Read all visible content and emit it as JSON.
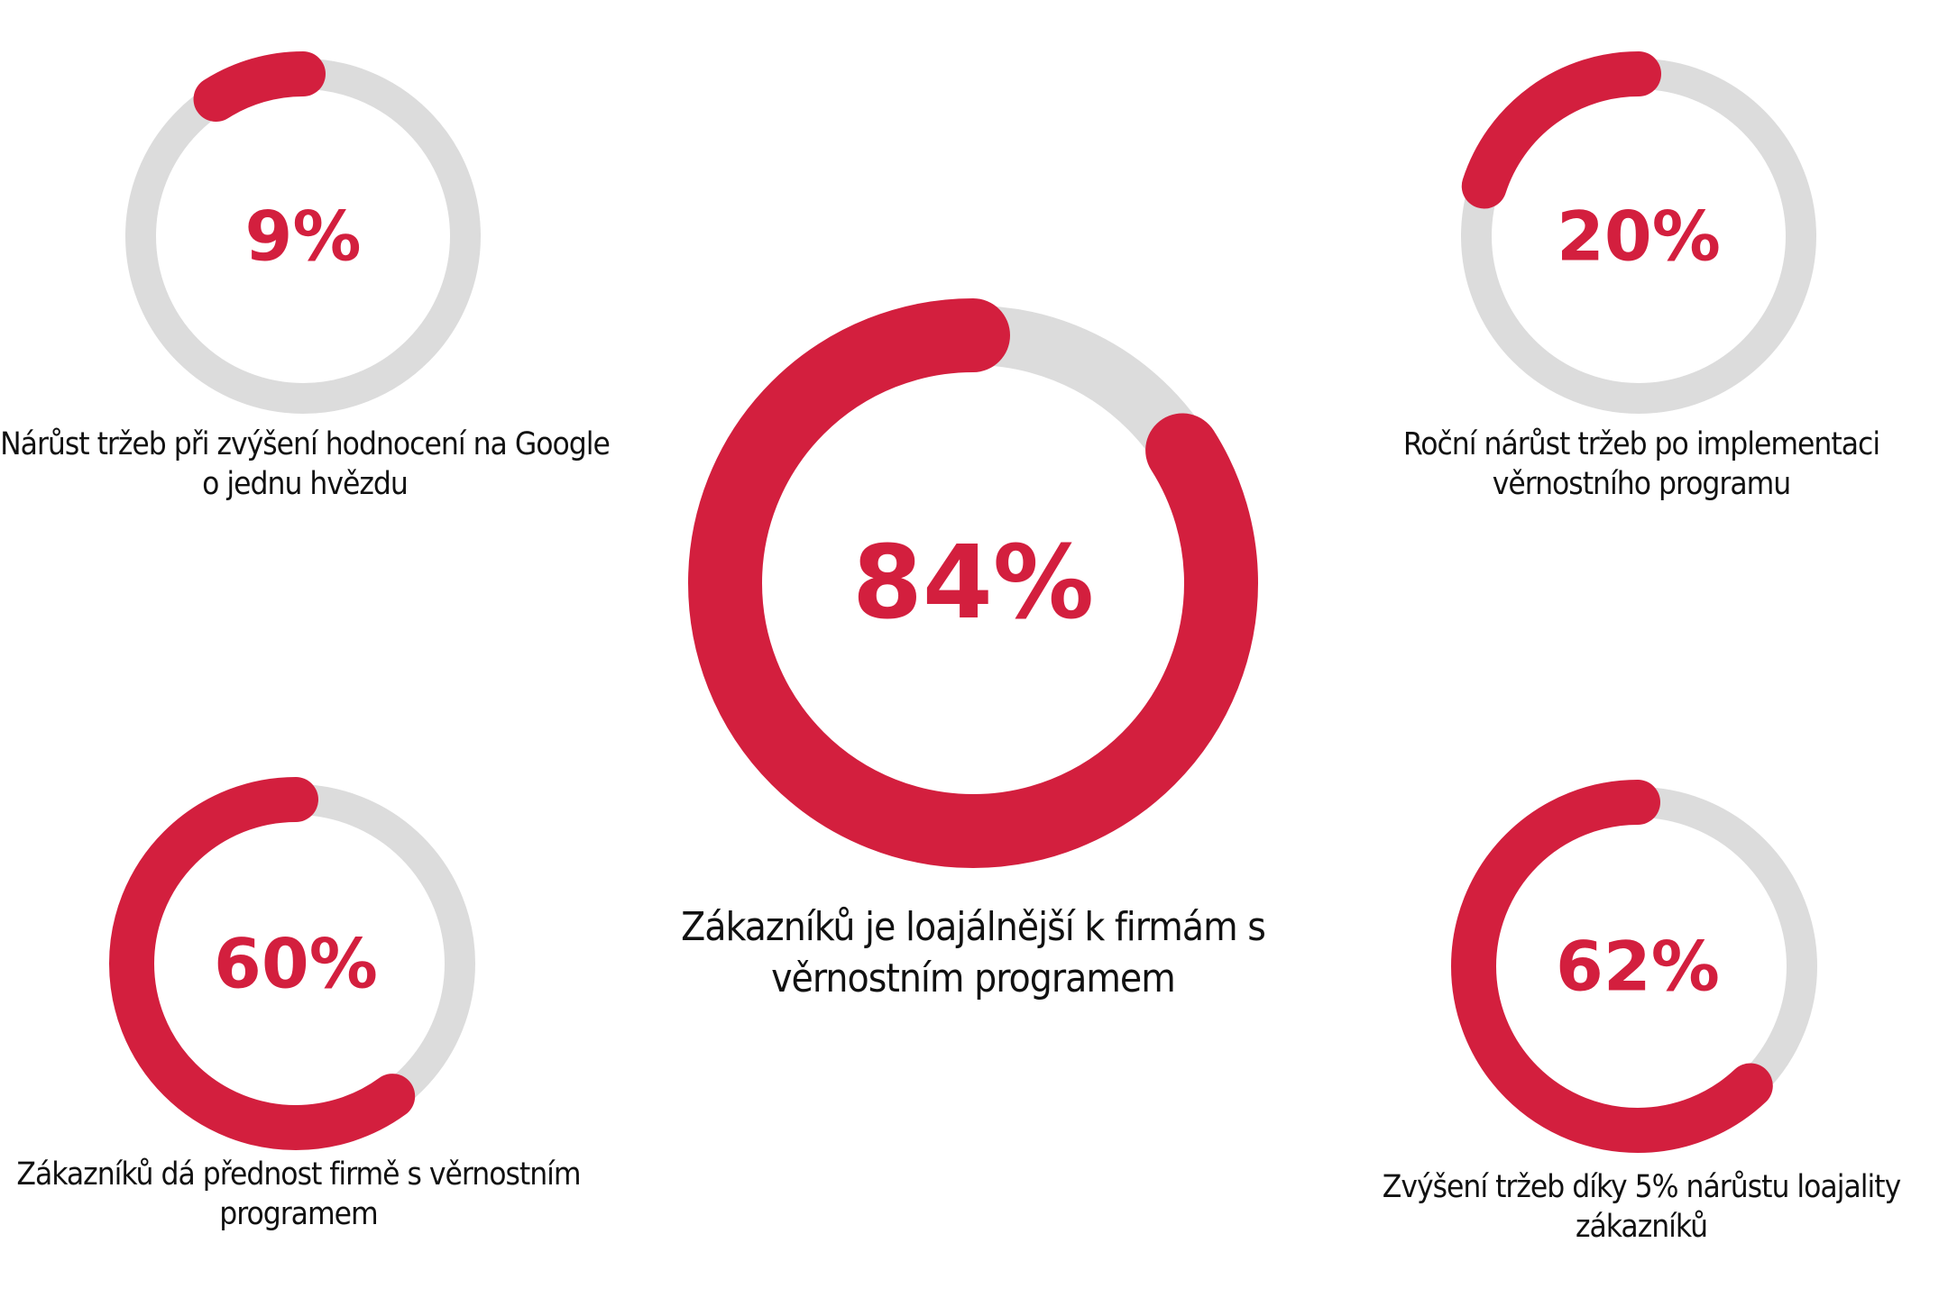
{
  "colors": {
    "accent": "#d31f3e",
    "track": "#dcdcdc"
  },
  "chart_data": {
    "type": "donut",
    "items": [
      {
        "id": "google",
        "value": 9,
        "label_text": "9%",
        "label": "Nárůst tržeb při zvýšení hodnocení na Google o jednu hvězdu"
      },
      {
        "id": "annual",
        "value": 20,
        "label_text": "20%",
        "label": "Roční nárůst tržeb po implementaci věrnostního programu"
      },
      {
        "id": "loyal",
        "value": 84,
        "label_text": "84%",
        "label": "Zákazníků je loajálnější k firmám s věrnostním programem"
      },
      {
        "id": "prefer",
        "value": 60,
        "label_text": "60%",
        "label": "Zákazníků dá přednost firmě s věrnostním programem"
      },
      {
        "id": "revenue",
        "value": 62,
        "label_text": "62%",
        "label": "Zvýšení tržeb díky 5% nárůstu loajality zákazníků"
      }
    ]
  }
}
